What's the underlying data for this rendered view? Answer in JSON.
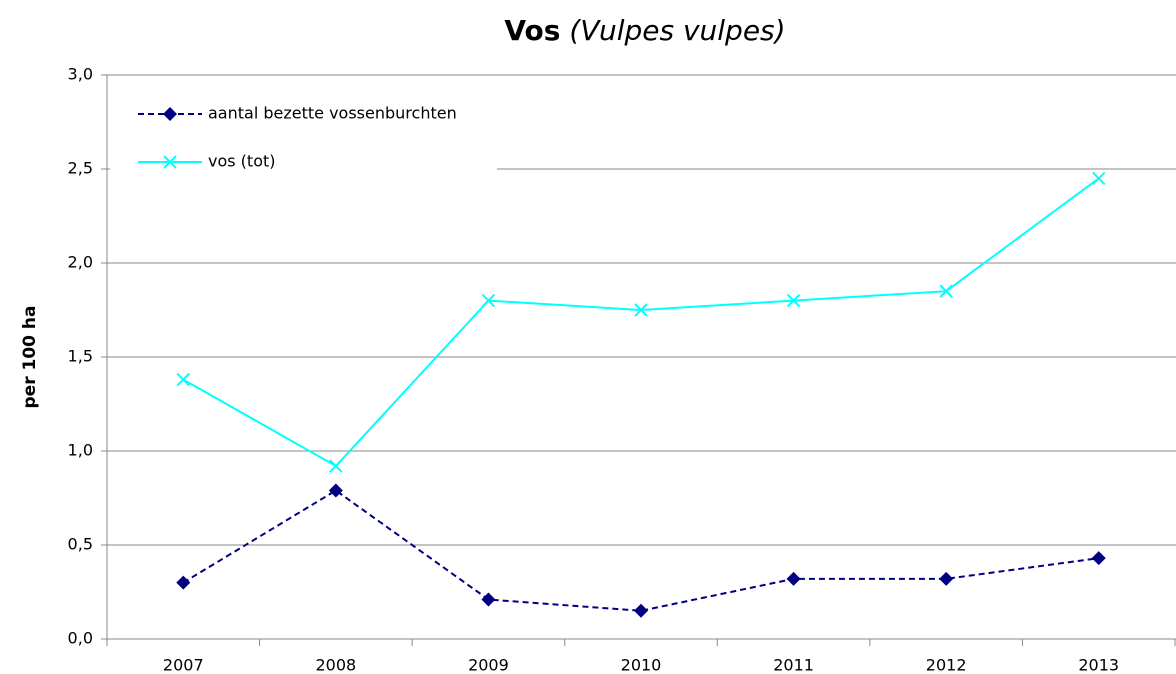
{
  "chart_data": {
    "type": "line",
    "title": "Vos",
    "subtitle": "(Vulpes vulpes)",
    "y_label": "per 100 ha",
    "categories": [
      "2007",
      "2008",
      "2009",
      "2010",
      "2011",
      "2012",
      "2013"
    ],
    "series": [
      {
        "name": "aantal bezette vossenburchten",
        "color": "#000080",
        "dash": true,
        "marker": "diamond",
        "values": [
          0.3,
          0.79,
          0.21,
          0.15,
          0.32,
          0.32,
          0.43
        ]
      },
      {
        "name": "vos (tot)",
        "color": "#00ffff",
        "dash": false,
        "marker": "x",
        "values": [
          1.38,
          0.92,
          1.8,
          1.75,
          1.8,
          1.85,
          2.45
        ]
      }
    ],
    "ylim": [
      0,
      3
    ],
    "yticks": [
      {
        "value": 0,
        "label": "0,0"
      },
      {
        "value": 0.5,
        "label": "0,5"
      },
      {
        "value": 1,
        "label": "1,0"
      },
      {
        "value": 1.5,
        "label": "1,5"
      },
      {
        "value": 2,
        "label": "2,0"
      },
      {
        "value": 2.5,
        "label": "2,5"
      },
      {
        "value": 3,
        "label": "3,0"
      }
    ],
    "grid": true,
    "legend": "upper left"
  }
}
